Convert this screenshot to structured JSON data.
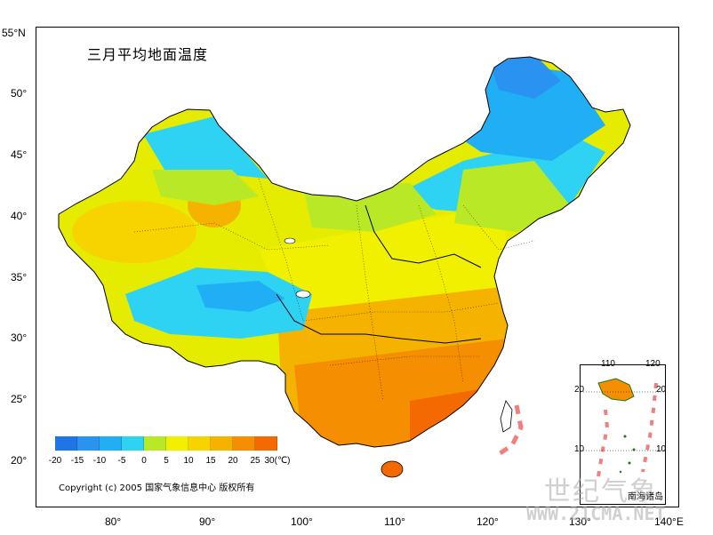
{
  "title": "三月平均地面温度",
  "lat_labels": [
    "55°N",
    "50°",
    "45°",
    "40°",
    "35°",
    "30°",
    "25°",
    "20°"
  ],
  "lon_labels": [
    "80°",
    "90°",
    "100°",
    "110°",
    "120°",
    "130°",
    "140°E"
  ],
  "legend": {
    "ticks": [
      "-20",
      "-15",
      "-10",
      "-5",
      "0",
      "5",
      "10",
      "15",
      "20",
      "25",
      "30(℃)"
    ],
    "colors": [
      "#1f74e6",
      "#2a92f0",
      "#20aef4",
      "#2ed2f2",
      "#b8e826",
      "#f0f000",
      "#f7d300",
      "#f5b300",
      "#f58e00",
      "#f46a00"
    ]
  },
  "copyright": "Copyright (c) 2005 国家气象信息中心 版权所有",
  "inset": {
    "label": "南海诸岛",
    "top_ticks": [
      "110",
      "120"
    ],
    "left_ticks": [
      "20",
      "10"
    ],
    "right_ticks": [
      "20",
      "10"
    ]
  },
  "watermark": {
    "cn": "世纪气象",
    "en": "WWW.21CMA.NET"
  }
}
